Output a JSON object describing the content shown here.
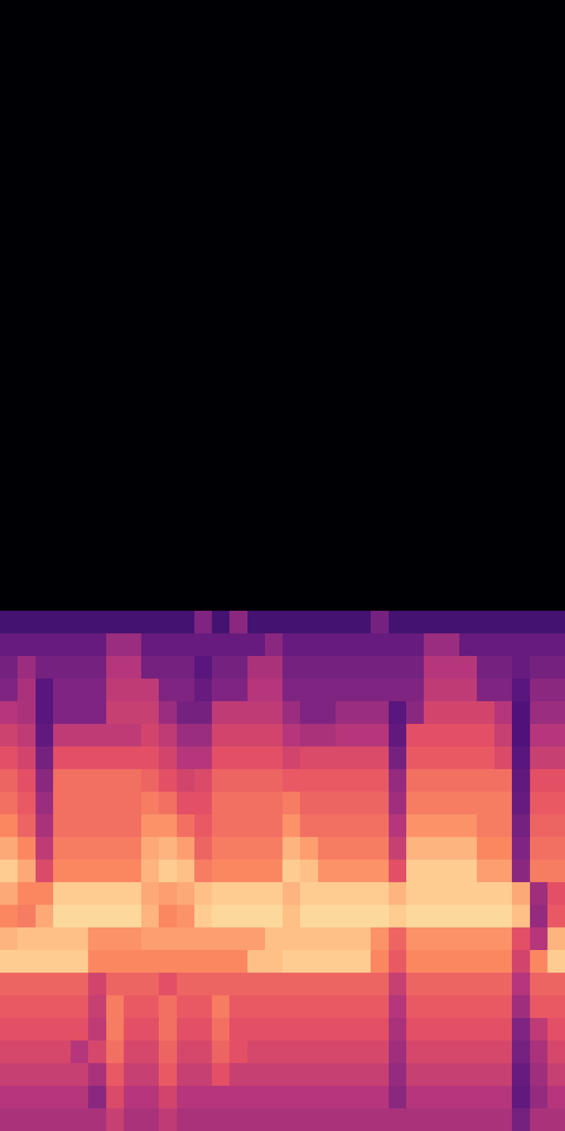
{
  "chart_data": {
    "type": "heatmap",
    "color": "magma",
    "tick_labels": false,
    "xlim": [
      0,
      32
    ],
    "ylim": [
      0,
      50
    ],
    "zlim": [
      -80,
      0
    ],
    "x_edges": [
      0,
      1,
      2,
      3,
      4,
      5,
      6,
      7,
      8,
      9,
      10,
      11,
      12,
      13,
      14,
      15,
      16,
      17,
      18,
      19,
      20,
      21,
      22,
      23,
      24,
      25,
      26,
      27,
      28,
      29,
      30,
      31,
      32
    ],
    "y_edges": [
      0,
      1,
      2,
      3,
      4,
      5,
      6,
      7,
      8,
      9,
      10,
      11,
      12,
      13,
      14,
      15,
      16,
      17,
      18,
      19,
      20,
      21,
      22,
      23,
      50
    ],
    "z": [
      [
        -42,
        -42,
        -42,
        -42,
        -42,
        -42,
        -36,
        -42,
        -42,
        -38,
        -42,
        -42,
        -42,
        -42,
        -42,
        -42,
        -42,
        -42,
        -42,
        -42,
        -42,
        -42,
        -42,
        -42,
        -42,
        -42,
        -42,
        -42,
        -42,
        -52,
        -42,
        -42
      ],
      [
        -40,
        -40,
        -40,
        -40,
        -40,
        -48,
        -32,
        -40,
        -40,
        -34,
        -40,
        -40,
        -40,
        -40,
        -40,
        -40,
        -40,
        -40,
        -40,
        -40,
        -40,
        -40,
        -48,
        -40,
        -40,
        -40,
        -40,
        -40,
        -40,
        -56,
        -46,
        -40
      ],
      [
        -36,
        -36,
        -36,
        -36,
        -36,
        -42,
        -28,
        -36,
        -36,
        -28,
        -36,
        -36,
        -30,
        -36,
        -36,
        -36,
        -36,
        -36,
        -36,
        -36,
        -36,
        -36,
        -46,
        -36,
        -36,
        -36,
        -36,
        -36,
        -36,
        -55,
        -44,
        -36
      ],
      [
        -33,
        -33,
        -33,
        -33,
        -40,
        -33,
        -24,
        -33,
        -33,
        -26,
        -33,
        -33,
        -26,
        -30,
        -33,
        -33,
        -33,
        -33,
        -33,
        -33,
        -33,
        -33,
        -44,
        -33,
        -33,
        -33,
        -33,
        -33,
        -33,
        -52,
        -42,
        -33
      ],
      [
        -30,
        -30,
        -30,
        -30,
        -30,
        -38,
        -22,
        -30,
        -30,
        -24,
        -30,
        -30,
        -24,
        -30,
        -30,
        -30,
        -30,
        -30,
        -30,
        -30,
        -30,
        -30,
        -42,
        -30,
        -30,
        -30,
        -30,
        -30,
        -30,
        -50,
        -38,
        -30
      ],
      [
        -28,
        -28,
        -28,
        -28,
        -28,
        -36,
        -22,
        -28,
        -28,
        -24,
        -28,
        -28,
        -22,
        -28,
        -28,
        -28,
        -28,
        -28,
        -28,
        -28,
        -28,
        -28,
        -40,
        -28,
        -28,
        -28,
        -28,
        -28,
        -28,
        -44,
        -28,
        -28
      ],
      [
        -26,
        -26,
        -26,
        -26,
        -26,
        -34,
        -26,
        -26,
        -26,
        -30,
        -26,
        -26,
        -26,
        -26,
        -26,
        -26,
        -26,
        -26,
        -26,
        -26,
        -26,
        -26,
        -36,
        -26,
        -26,
        -26,
        -26,
        -26,
        -26,
        -40,
        -26,
        -26
      ],
      [
        -8,
        -8,
        -8,
        -8,
        -8,
        -20,
        -20,
        -20,
        -20,
        -20,
        -20,
        -20,
        -20,
        -20,
        -10,
        -10,
        -8,
        -8,
        -8,
        -8,
        -8,
        -20,
        -28,
        -20,
        -20,
        -20,
        -20,
        -20,
        -20,
        -34,
        -20,
        -8
      ],
      [
        -12,
        -10,
        -10,
        -10,
        -10,
        -18,
        -18,
        -18,
        -16,
        -16,
        -16,
        -16,
        -16,
        -16,
        -16,
        -10,
        -10,
        -10,
        -10,
        -10,
        -10,
        -18,
        -26,
        -18,
        -18,
        -18,
        -18,
        -18,
        -18,
        -30,
        -40,
        -12
      ],
      [
        -20,
        -22,
        -14,
        -6,
        -6,
        -6,
        -6,
        -6,
        -12,
        -20,
        -18,
        -8,
        -6,
        -6,
        -6,
        -6,
        -10,
        -6,
        -6,
        -6,
        -6,
        -6,
        -8,
        -6,
        -6,
        -6,
        -6,
        -6,
        -6,
        -10,
        -46,
        -28
      ],
      [
        -14,
        -20,
        -20,
        -8,
        -8,
        -8,
        -8,
        -8,
        -14,
        -16,
        -14,
        -10,
        -8,
        -8,
        -8,
        -8,
        -12,
        -8,
        -8,
        -8,
        -8,
        -8,
        -12,
        -8,
        -8,
        -8,
        -8,
        -8,
        -8,
        -14,
        -44,
        -30
      ],
      [
        -8,
        -14,
        -32,
        -20,
        -20,
        -20,
        -20,
        -20,
        -12,
        -8,
        -10,
        -22,
        -20,
        -20,
        -20,
        -20,
        -8,
        -10,
        -18,
        -18,
        -18,
        -18,
        -30,
        -8,
        -8,
        -8,
        -8,
        -16,
        -16,
        -48,
        -22,
        -22
      ],
      [
        -14,
        -20,
        -38,
        -22,
        -22,
        -22,
        -22,
        -22,
        -14,
        -12,
        -16,
        -26,
        -22,
        -22,
        -22,
        -22,
        -12,
        -16,
        -22,
        -22,
        -22,
        -22,
        -36,
        -12,
        -12,
        -12,
        -12,
        -20,
        -20,
        -50,
        -24,
        -24
      ],
      [
        -20,
        -26,
        -42,
        -24,
        -24,
        -24,
        -24,
        -24,
        -18,
        -18,
        -24,
        -28,
        -24,
        -24,
        -24,
        -24,
        -18,
        -24,
        -24,
        -24,
        -24,
        -24,
        -40,
        -18,
        -18,
        -18,
        -18,
        -22,
        -22,
        -52,
        -26,
        -26
      ],
      [
        -24,
        -28,
        -45,
        -24,
        -24,
        -24,
        -24,
        -24,
        -22,
        -24,
        -30,
        -30,
        -24,
        -24,
        -24,
        -24,
        -22,
        -26,
        -26,
        -26,
        -26,
        -26,
        -44,
        -22,
        -22,
        -22,
        -22,
        -22,
        -22,
        -55,
        -28,
        -28
      ],
      [
        -26,
        -30,
        -48,
        -24,
        -24,
        -24,
        -24,
        -24,
        -26,
        -30,
        -34,
        -32,
        -26,
        -26,
        -26,
        -26,
        -28,
        -28,
        -28,
        -28,
        -28,
        -28,
        -46,
        -24,
        -24,
        -24,
        -24,
        -24,
        -24,
        -56,
        -30,
        -30
      ],
      [
        -30,
        -34,
        -52,
        -30,
        -30,
        -30,
        -30,
        -30,
        -30,
        -34,
        -40,
        -40,
        -30,
        -30,
        -30,
        -30,
        -34,
        -32,
        -32,
        -32,
        -32,
        -32,
        -52,
        -28,
        -28,
        -28,
        -28,
        -28,
        -32,
        -58,
        -36,
        -36
      ],
      [
        -35,
        -38,
        -56,
        -38,
        -38,
        -38,
        -38,
        -38,
        -34,
        -38,
        -45,
        -45,
        -34,
        -34,
        -34,
        -34,
        -40,
        -42,
        -42,
        -40,
        -40,
        -40,
        -56,
        -30,
        -30,
        -30,
        -30,
        -30,
        -36,
        -60,
        -40,
        -40
      ],
      [
        -40,
        -42,
        -58,
        -50,
        -50,
        -50,
        -36,
        -36,
        -36,
        -45,
        -52,
        -52,
        -38,
        -38,
        -38,
        -38,
        -45,
        -50,
        -50,
        -45,
        -45,
        -45,
        -58,
        -48,
        -34,
        -34,
        -34,
        -34,
        -40,
        -60,
        -45,
        -45
      ],
      [
        -50,
        -42,
        -58,
        -50,
        -50,
        -50,
        -38,
        -38,
        -38,
        -50,
        -50,
        -55,
        -50,
        -50,
        -40,
        -40,
        -50,
        -50,
        -50,
        -50,
        -50,
        -50,
        -50,
        -50,
        -38,
        -38,
        -38,
        -50,
        -50,
        -58,
        -48,
        -48
      ],
      [
        -52,
        -45,
        -52,
        -52,
        -52,
        -52,
        -40,
        -40,
        -52,
        -52,
        -52,
        -58,
        -52,
        -52,
        -42,
        -42,
        -52,
        -52,
        -52,
        -52,
        -52,
        -52,
        -52,
        -52,
        -40,
        -40,
        -40,
        -52,
        -52,
        -55,
        -52,
        -52
      ],
      [
        -55,
        -55,
        -55,
        -55,
        -55,
        -55,
        -45,
        -45,
        -55,
        -55,
        -55,
        -55,
        -55,
        -55,
        -55,
        -48,
        -55,
        -55,
        -55,
        -55,
        -55,
        -55,
        -55,
        -55,
        -45,
        -45,
        -55,
        -55,
        -55,
        -55,
        -55,
        -55
      ],
      [
        -62,
        -62,
        -62,
        -62,
        -62,
        -62,
        -62,
        -62,
        -62,
        -62,
        -62,
        -50,
        -62,
        -48,
        -62,
        -62,
        -62,
        -62,
        -62,
        -62,
        -62,
        -52,
        -62,
        -62,
        -62,
        -62,
        -62,
        -62,
        -62,
        -62,
        -62,
        -62
      ],
      [
        -80,
        -80,
        -80,
        -80,
        -80,
        -80,
        -80,
        -80,
        -80,
        -80,
        -80,
        -80,
        -80,
        -80,
        -80,
        -80,
        -80,
        -80,
        -80,
        -80,
        -80,
        -80,
        -80,
        -80,
        -80,
        -80,
        -80,
        -80,
        -80,
        -80,
        -80,
        -80
      ]
    ]
  }
}
